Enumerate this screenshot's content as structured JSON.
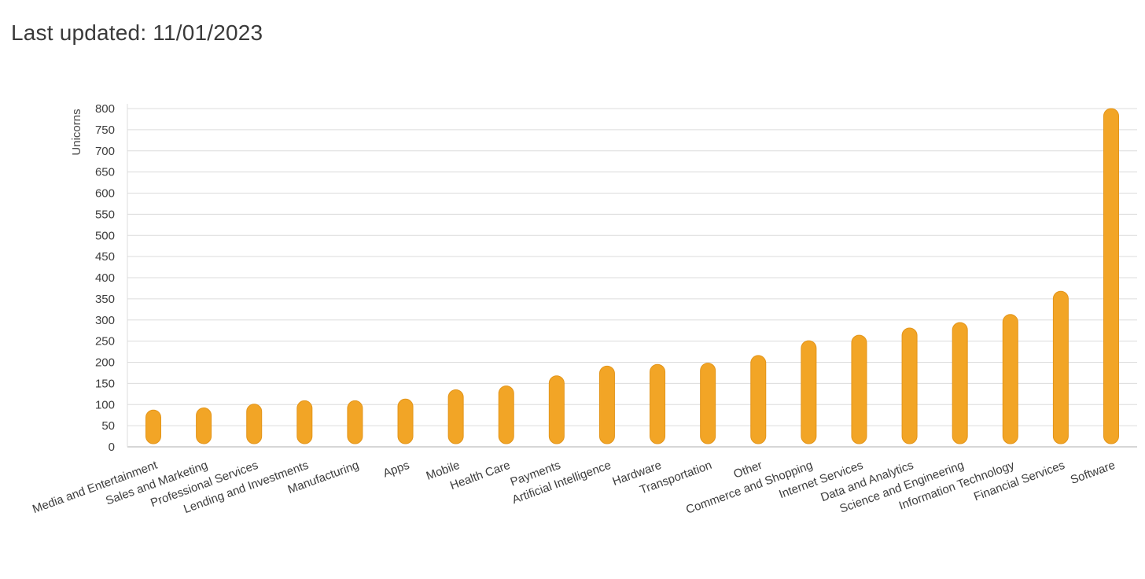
{
  "header": {
    "last_updated": "Last updated: 11/01/2023"
  },
  "colors": {
    "bar": "#f2a526",
    "bar_edge": "#e3951a",
    "grid": "#dcdcdc",
    "axis": "#bdbdbd"
  },
  "chart_data": {
    "type": "bar",
    "categories": [
      "Media and Entertainment",
      "Sales and Marketing",
      "Professional Services",
      "Lending and Investments",
      "Manufacturing",
      "Apps",
      "Mobile",
      "Health Care",
      "Payments",
      "Artificial Intelligence",
      "Hardware",
      "Transportation",
      "Other",
      "Commerce and Shopping",
      "Internet Services",
      "Data and Analytics",
      "Science and Engineering",
      "Information Technology",
      "Financial Services",
      "Software"
    ],
    "values": [
      87,
      92,
      101,
      109,
      109,
      113,
      135,
      144,
      168,
      191,
      195,
      198,
      216,
      251,
      264,
      281,
      294,
      313,
      368,
      800
    ],
    "xlabel": "",
    "ylabel": "Unicorns",
    "ylim": [
      0,
      800
    ],
    "yticks": [
      0,
      50,
      100,
      150,
      200,
      250,
      300,
      350,
      400,
      450,
      500,
      550,
      600,
      650,
      700,
      750,
      800
    ],
    "grid": true,
    "legend": "none"
  }
}
